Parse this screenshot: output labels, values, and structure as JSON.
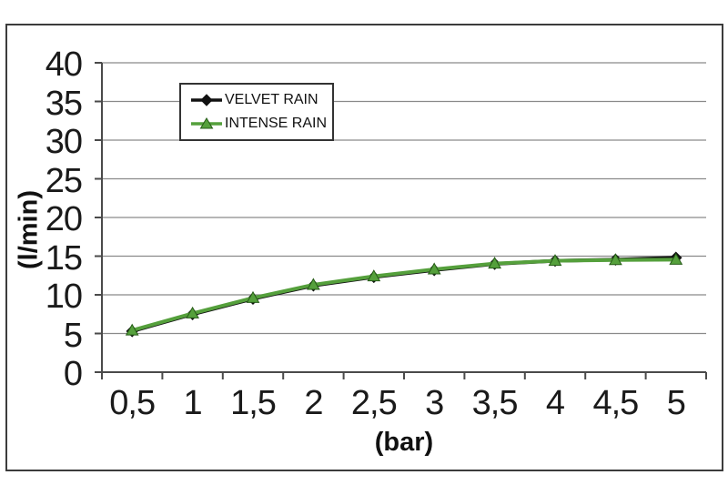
{
  "chart_data": {
    "type": "line",
    "title": "",
    "xlabel": "(bar)",
    "ylabel": "(l/min)",
    "categories": [
      "0,5",
      "1",
      "1,5",
      "2",
      "2,5",
      "3",
      "3,5",
      "4",
      "4,5",
      "5"
    ],
    "x_values": [
      0.5,
      1,
      1.5,
      2,
      2.5,
      3,
      3.5,
      4,
      4.5,
      5
    ],
    "series": [
      {
        "name": "VELVET RAIN",
        "marker": "diamond",
        "color": "#111111",
        "marker_fill": "#111111",
        "marker_stroke": "#111111",
        "values": [
          5.3,
          7.5,
          9.5,
          11.2,
          12.3,
          13.2,
          14.0,
          14.4,
          14.55,
          14.8
        ]
      },
      {
        "name": "INTENSE RAIN",
        "marker": "triangle",
        "color": "#55a03c",
        "marker_fill": "#55a03c",
        "marker_stroke": "#265c17",
        "values": [
          5.4,
          7.6,
          9.6,
          11.3,
          12.4,
          13.3,
          14.05,
          14.4,
          14.5,
          14.55
        ]
      }
    ],
    "ylim": [
      0,
      40
    ],
    "yticks": [
      "0",
      "5",
      "10",
      "15",
      "20",
      "25",
      "30",
      "35",
      "40"
    ],
    "ytick_values": [
      0,
      5,
      10,
      15,
      20,
      25,
      30,
      35,
      40
    ],
    "grid": "horizontal",
    "legend_position": "inside-top-left"
  },
  "colors": {
    "background": "#ffffff",
    "frame_border": "#3c3c3c",
    "gridline": "#8a8a8a",
    "axis": "#4a4a4a",
    "text": "#1a1a1a",
    "legend_border": "#333333"
  }
}
